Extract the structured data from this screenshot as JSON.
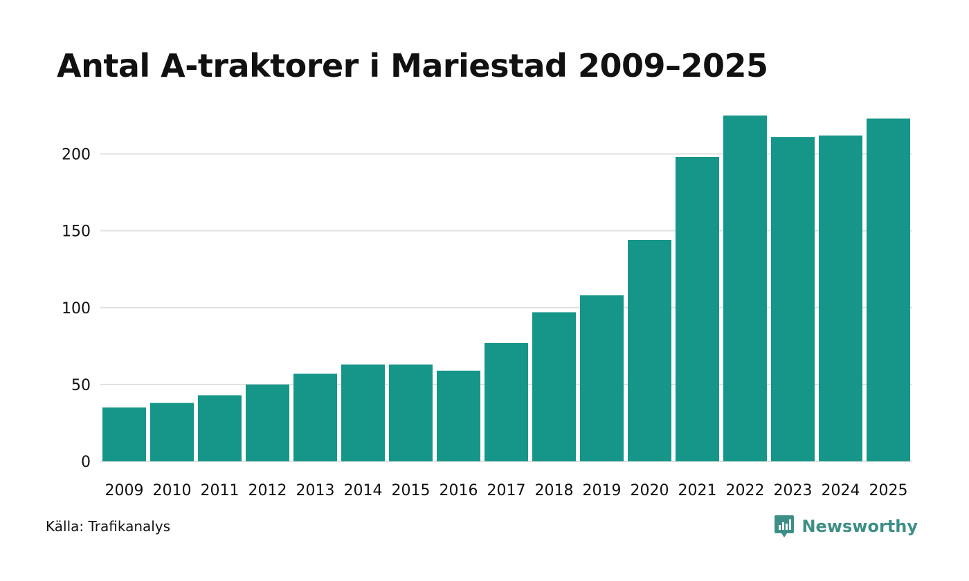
{
  "header": {
    "title": "Antal A-traktorer i Mariestad 2009–2025"
  },
  "footer": {
    "source": "Källa: Trafikanalys",
    "brand": "Newsworthy"
  },
  "colors": {
    "bar": "#159688",
    "grid": "#e0e0e0",
    "brand": "#3d8f86"
  },
  "chart_data": {
    "type": "bar",
    "title": "Antal A-traktorer i Mariestad 2009–2025",
    "xlabel": "",
    "ylabel": "",
    "categories": [
      "2009",
      "2010",
      "2011",
      "2012",
      "2013",
      "2014",
      "2015",
      "2016",
      "2017",
      "2018",
      "2019",
      "2020",
      "2021",
      "2022",
      "2023",
      "2024",
      "2025"
    ],
    "values": [
      35,
      38,
      43,
      50,
      57,
      63,
      63,
      59,
      77,
      97,
      108,
      144,
      198,
      225,
      211,
      212,
      223
    ],
    "yticks": [
      0,
      50,
      100,
      150,
      200
    ],
    "ylim": [
      0,
      225
    ],
    "grid": true,
    "legend": "none"
  }
}
